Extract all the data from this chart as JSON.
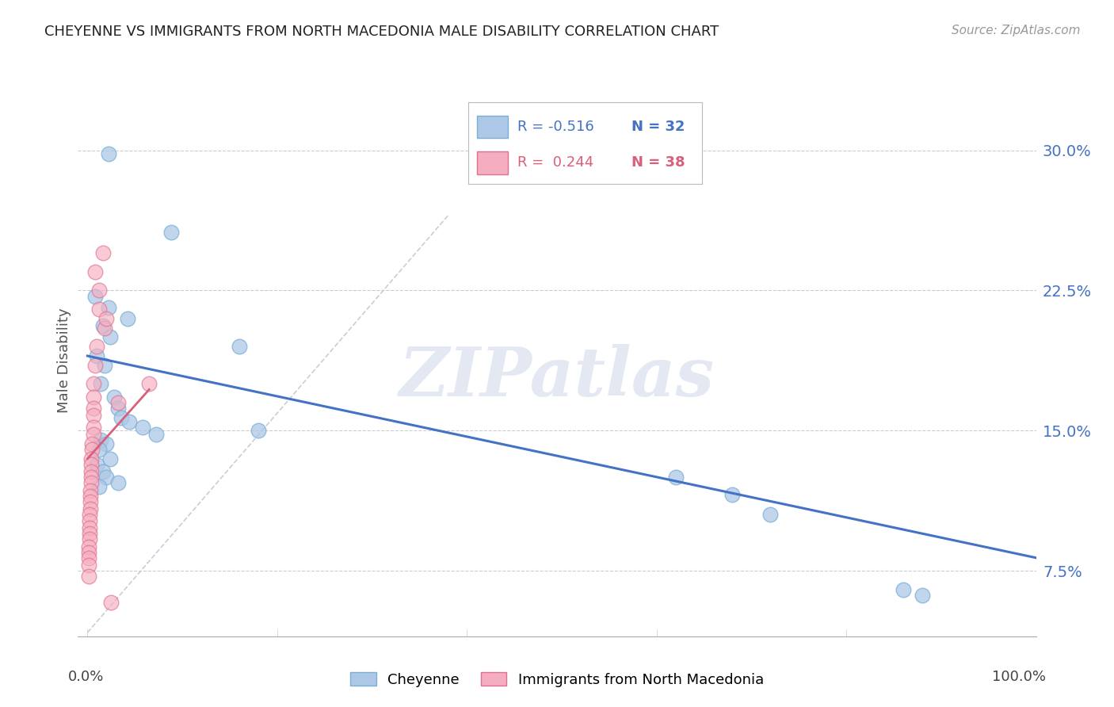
{
  "title": "CHEYENNE VS IMMIGRANTS FROM NORTH MACEDONIA MALE DISABILITY CORRELATION CHART",
  "source": "Source: ZipAtlas.com",
  "ylabel": "Male Disability",
  "yticks": [
    0.075,
    0.15,
    0.225,
    0.3
  ],
  "ytick_labels": [
    "7.5%",
    "15.0%",
    "22.5%",
    "30.0%"
  ],
  "xlim": [
    0.0,
    1.0
  ],
  "ylim": [
    0.04,
    0.335
  ],
  "cheyenne_color": "#adc8e6",
  "cheyenne_edge": "#7aafd4",
  "macedonia_color": "#f5aec0",
  "macedonia_edge": "#e07090",
  "blue_line_color": "#4472c4",
  "pink_line_color": "#d9607a",
  "dashed_line_color": "#c8cdd8",
  "watermark": "ZIPatlas",
  "cheyenne_x": [
    0.022,
    0.088,
    0.042,
    0.16,
    0.008,
    0.022,
    0.016,
    0.024,
    0.01,
    0.018,
    0.014,
    0.028,
    0.032,
    0.036,
    0.044,
    0.058,
    0.014,
    0.02,
    0.012,
    0.024,
    0.01,
    0.016,
    0.02,
    0.032,
    0.012,
    0.62,
    0.68,
    0.72,
    0.86,
    0.88,
    0.18,
    0.072
  ],
  "cheyenne_y": [
    0.298,
    0.256,
    0.21,
    0.195,
    0.222,
    0.216,
    0.206,
    0.2,
    0.19,
    0.185,
    0.175,
    0.168,
    0.162,
    0.157,
    0.155,
    0.152,
    0.145,
    0.143,
    0.14,
    0.135,
    0.132,
    0.128,
    0.125,
    0.122,
    0.12,
    0.125,
    0.116,
    0.105,
    0.065,
    0.062,
    0.15,
    0.148
  ],
  "macedonia_x": [
    0.008,
    0.012,
    0.012,
    0.016,
    0.018,
    0.02,
    0.01,
    0.008,
    0.006,
    0.006,
    0.006,
    0.006,
    0.006,
    0.006,
    0.005,
    0.005,
    0.004,
    0.004,
    0.004,
    0.004,
    0.004,
    0.003,
    0.003,
    0.003,
    0.003,
    0.002,
    0.002,
    0.002,
    0.002,
    0.002,
    0.001,
    0.001,
    0.001,
    0.001,
    0.001,
    0.032,
    0.065,
    0.025
  ],
  "macedonia_y": [
    0.235,
    0.225,
    0.215,
    0.245,
    0.205,
    0.21,
    0.195,
    0.185,
    0.175,
    0.168,
    0.162,
    0.158,
    0.152,
    0.148,
    0.143,
    0.14,
    0.135,
    0.132,
    0.128,
    0.125,
    0.122,
    0.118,
    0.115,
    0.112,
    0.108,
    0.105,
    0.102,
    0.098,
    0.095,
    0.092,
    0.088,
    0.085,
    0.082,
    0.078,
    0.072,
    0.165,
    0.175,
    0.058
  ],
  "blue_line_x": [
    0.0,
    1.0
  ],
  "blue_line_y": [
    0.19,
    0.082
  ],
  "pink_line_x": [
    0.0,
    0.065
  ],
  "pink_line_y": [
    0.135,
    0.172
  ],
  "dashed_line_x": [
    0.0,
    0.38
  ],
  "dashed_line_y": [
    0.042,
    0.265
  ]
}
